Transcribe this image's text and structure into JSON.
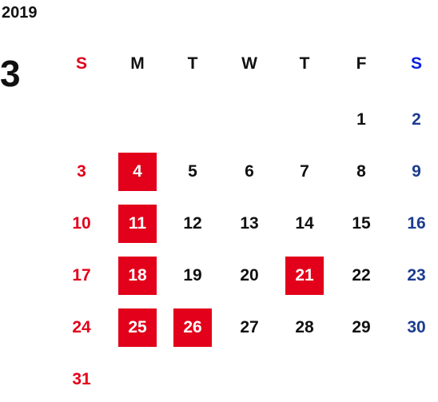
{
  "calendar": {
    "year": "2019",
    "month": "3",
    "weekdays": [
      "S",
      "M",
      "T",
      "W",
      "T",
      "F",
      "S"
    ],
    "weeks": [
      [
        null,
        null,
        null,
        null,
        null,
        1,
        2
      ],
      [
        3,
        4,
        5,
        6,
        7,
        8,
        9
      ],
      [
        10,
        11,
        12,
        13,
        14,
        15,
        16
      ],
      [
        17,
        18,
        19,
        20,
        21,
        22,
        23
      ],
      [
        24,
        25,
        26,
        27,
        28,
        29,
        30
      ],
      [
        31,
        null,
        null,
        null,
        null,
        null,
        null
      ]
    ],
    "highlighted": [
      4,
      11,
      18,
      21,
      25,
      26
    ]
  }
}
